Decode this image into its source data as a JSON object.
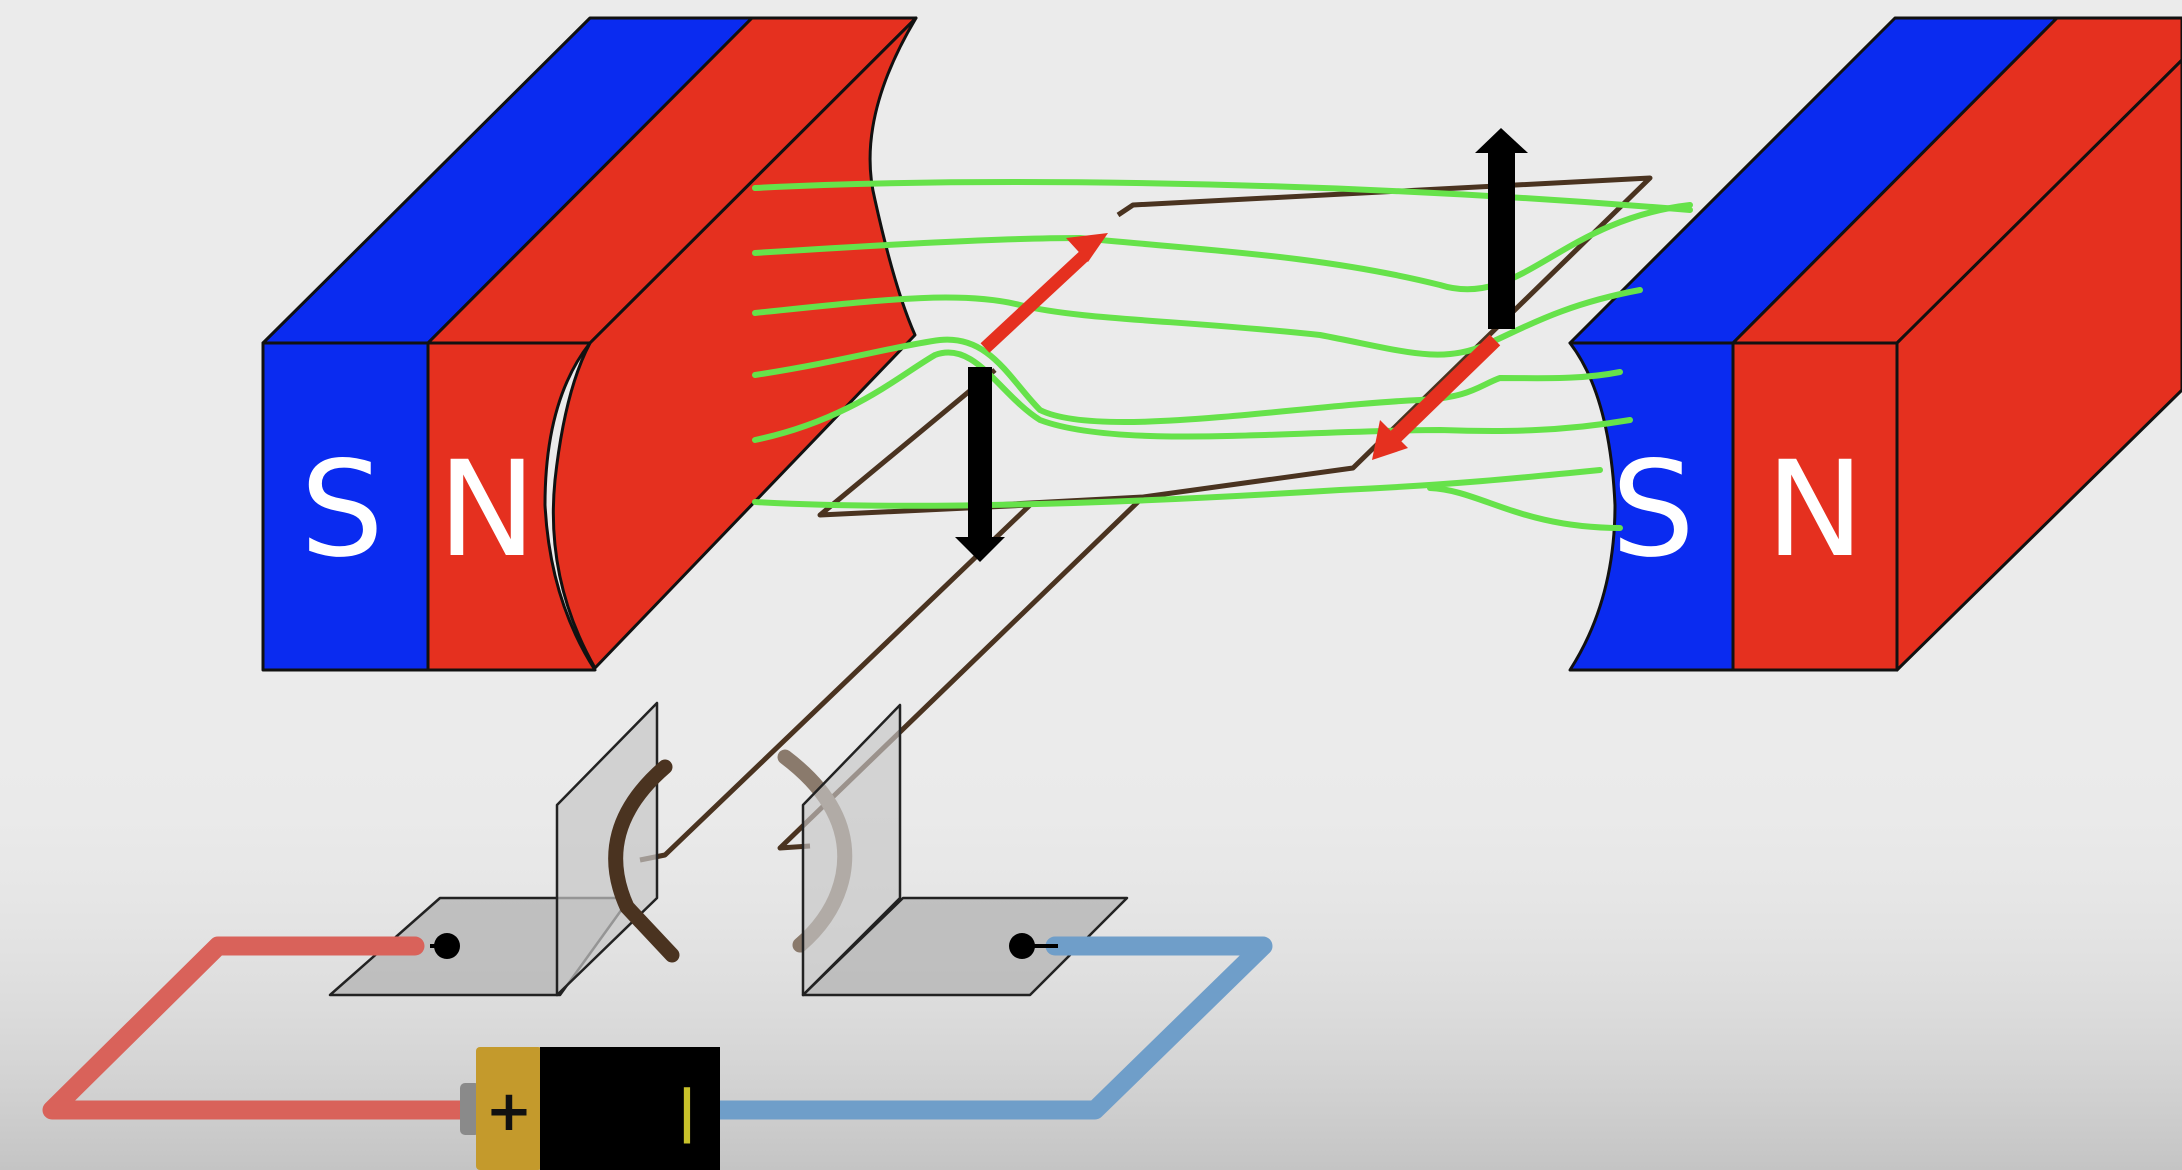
{
  "magnets": {
    "left": {
      "south_label": "S",
      "north_label": "N"
    },
    "right": {
      "south_label": "S",
      "north_label": "N"
    }
  },
  "battery": {
    "positive_label": "+",
    "negative_label": "|"
  },
  "colors": {
    "background": "#ebebeb",
    "south_pole": "#0a2bf0",
    "north_pole": "#e5301f",
    "field_lines": "#66e24a",
    "force_arrow": "#000000",
    "current_arrow": "#e5301f",
    "coil_wire": "#4a3320",
    "positive_lead": "#d9625a",
    "negative_lead": "#6f9ec9",
    "battery_cap": "#c49a2c",
    "battery_body": "#000000"
  },
  "icons": {
    "force_arrows": "black-arrow-icon",
    "current_arrows": "red-arrow-icon",
    "terminals": "terminal-dot-icon"
  }
}
